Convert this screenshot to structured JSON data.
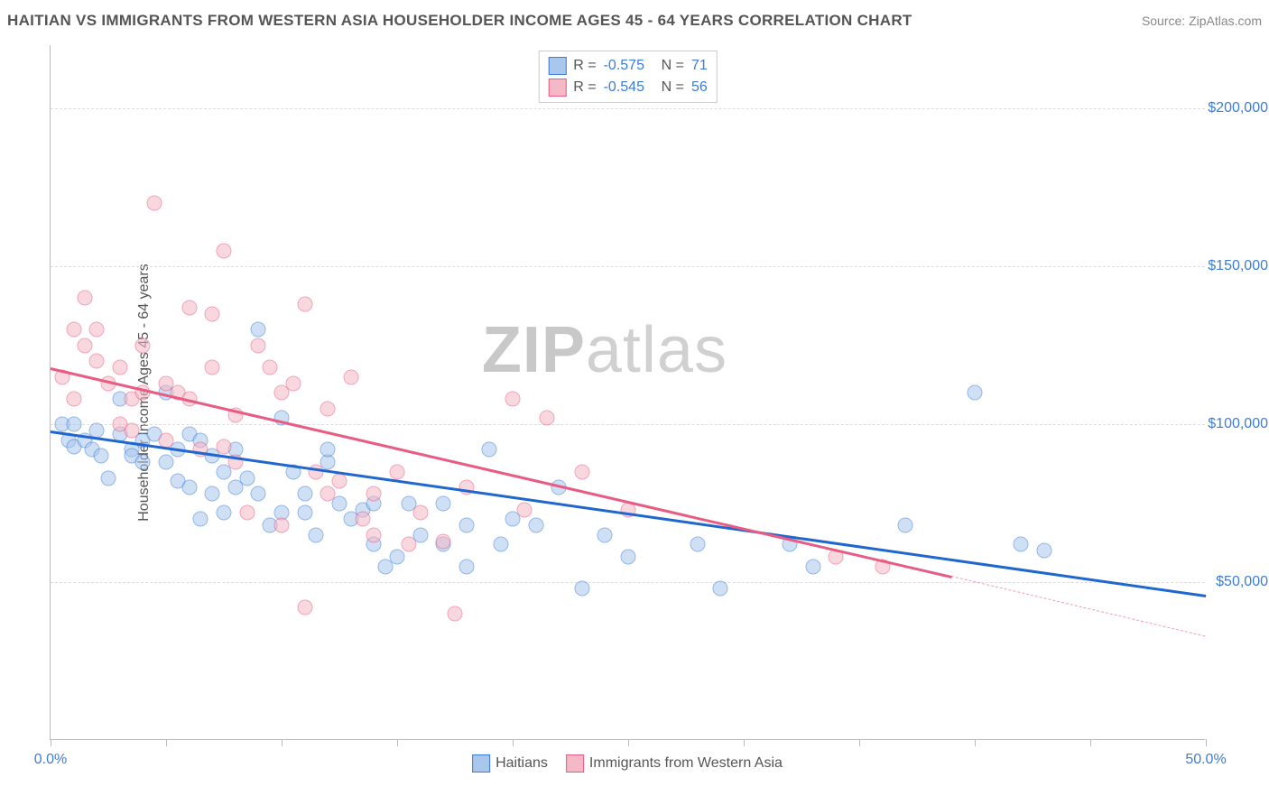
{
  "title": "HAITIAN VS IMMIGRANTS FROM WESTERN ASIA HOUSEHOLDER INCOME AGES 45 - 64 YEARS CORRELATION CHART",
  "source": "Source: ZipAtlas.com",
  "watermark_a": "ZIP",
  "watermark_b": "atlas",
  "chart": {
    "type": "scatter",
    "xlabel": "",
    "ylabel": "Householder Income Ages 45 - 64 years",
    "xlim": [
      0,
      50
    ],
    "ylim": [
      0,
      220000
    ],
    "xtick_labels": {
      "0": "0.0%",
      "50": "50.0%"
    },
    "xticks": [
      0,
      5,
      10,
      15,
      20,
      25,
      30,
      35,
      40,
      45,
      50
    ],
    "yticks": [
      50000,
      100000,
      150000,
      200000
    ],
    "ytick_labels": {
      "50000": "$50,000",
      "100000": "$100,000",
      "150000": "$150,000",
      "200000": "$200,000"
    },
    "grid_color": "#dddddd",
    "axis_color": "#bbbbbb",
    "tick_label_color": "#3b7dd8",
    "tick_label_fontsize": 16,
    "background_color": "#ffffff",
    "marker_size": 17,
    "marker_opacity": 0.55,
    "series": [
      {
        "name": "Haitians",
        "color_fill": "#a9c6ec",
        "color_stroke": "#3b7dd8",
        "trend_color": "#1f66d0",
        "trend_width": 2.5,
        "R": "-0.575",
        "N": "71",
        "trend": {
          "x1": 0,
          "y1": 98000,
          "x2": 50,
          "y2": 46000
        },
        "points": [
          [
            0.5,
            100000
          ],
          [
            0.8,
            95000
          ],
          [
            1,
            93000
          ],
          [
            1,
            100000
          ],
          [
            1.5,
            95000
          ],
          [
            1.8,
            92000
          ],
          [
            2,
            98000
          ],
          [
            2.2,
            90000
          ],
          [
            2.5,
            83000
          ],
          [
            3,
            97000
          ],
          [
            3,
            108000
          ],
          [
            3.5,
            92000
          ],
          [
            3.5,
            90000
          ],
          [
            4,
            88000
          ],
          [
            4,
            95000
          ],
          [
            4.5,
            97000
          ],
          [
            5,
            110000
          ],
          [
            5,
            88000
          ],
          [
            5.5,
            82000
          ],
          [
            5.5,
            92000
          ],
          [
            6,
            97000
          ],
          [
            6,
            80000
          ],
          [
            6.5,
            95000
          ],
          [
            6.5,
            70000
          ],
          [
            7,
            90000
          ],
          [
            7,
            78000
          ],
          [
            7.5,
            72000
          ],
          [
            7.5,
            85000
          ],
          [
            8,
            80000
          ],
          [
            8,
            92000
          ],
          [
            8.5,
            83000
          ],
          [
            9,
            130000
          ],
          [
            9,
            78000
          ],
          [
            9.5,
            68000
          ],
          [
            10,
            102000
          ],
          [
            10,
            72000
          ],
          [
            10.5,
            85000
          ],
          [
            11,
            78000
          ],
          [
            11,
            72000
          ],
          [
            11.5,
            65000
          ],
          [
            12,
            88000
          ],
          [
            12,
            92000
          ],
          [
            12.5,
            75000
          ],
          [
            13,
            70000
          ],
          [
            13.5,
            73000
          ],
          [
            14,
            75000
          ],
          [
            14,
            62000
          ],
          [
            14.5,
            55000
          ],
          [
            15,
            58000
          ],
          [
            15.5,
            75000
          ],
          [
            16,
            65000
          ],
          [
            17,
            75000
          ],
          [
            17,
            62000
          ],
          [
            18,
            55000
          ],
          [
            18,
            68000
          ],
          [
            19,
            92000
          ],
          [
            19.5,
            62000
          ],
          [
            20,
            70000
          ],
          [
            21,
            68000
          ],
          [
            22,
            80000
          ],
          [
            23,
            48000
          ],
          [
            24,
            65000
          ],
          [
            25,
            58000
          ],
          [
            28,
            62000
          ],
          [
            29,
            48000
          ],
          [
            32,
            62000
          ],
          [
            33,
            55000
          ],
          [
            37,
            68000
          ],
          [
            40,
            110000
          ],
          [
            42,
            62000
          ],
          [
            43,
            60000
          ]
        ]
      },
      {
        "name": "Immigrants from Western Asia",
        "color_fill": "#f4b8c6",
        "color_stroke": "#e85b82",
        "trend_color": "#e85b82",
        "trend_width": 2.5,
        "R": "-0.545",
        "N": "56",
        "trend": {
          "x1": 0,
          "y1": 118000,
          "x2": 39,
          "y2": 52000
        },
        "trend_dashed": {
          "x1": 39,
          "y1": 52000,
          "x2": 50,
          "y2": 33000
        },
        "points": [
          [
            0.5,
            115000
          ],
          [
            1,
            130000
          ],
          [
            1,
            108000
          ],
          [
            1.5,
            125000
          ],
          [
            1.5,
            140000
          ],
          [
            2,
            120000
          ],
          [
            2,
            130000
          ],
          [
            2.5,
            113000
          ],
          [
            3,
            100000
          ],
          [
            3,
            118000
          ],
          [
            3.5,
            98000
          ],
          [
            3.5,
            108000
          ],
          [
            4,
            110000
          ],
          [
            4,
            125000
          ],
          [
            4.5,
            170000
          ],
          [
            5,
            95000
          ],
          [
            5,
            113000
          ],
          [
            5.5,
            110000
          ],
          [
            6,
            137000
          ],
          [
            6,
            108000
          ],
          [
            6.5,
            92000
          ],
          [
            7,
            118000
          ],
          [
            7,
            135000
          ],
          [
            7.5,
            93000
          ],
          [
            7.5,
            155000
          ],
          [
            8,
            88000
          ],
          [
            8,
            103000
          ],
          [
            8.5,
            72000
          ],
          [
            9,
            125000
          ],
          [
            9.5,
            118000
          ],
          [
            10,
            68000
          ],
          [
            10,
            110000
          ],
          [
            10.5,
            113000
          ],
          [
            11,
            138000
          ],
          [
            11,
            42000
          ],
          [
            11.5,
            85000
          ],
          [
            12,
            78000
          ],
          [
            12,
            105000
          ],
          [
            12.5,
            82000
          ],
          [
            13,
            115000
          ],
          [
            13.5,
            70000
          ],
          [
            14,
            78000
          ],
          [
            14,
            65000
          ],
          [
            15,
            85000
          ],
          [
            15.5,
            62000
          ],
          [
            16,
            72000
          ],
          [
            17,
            63000
          ],
          [
            17.5,
            40000
          ],
          [
            18,
            80000
          ],
          [
            20,
            108000
          ],
          [
            20.5,
            73000
          ],
          [
            21.5,
            102000
          ],
          [
            23,
            85000
          ],
          [
            25,
            73000
          ],
          [
            34,
            58000
          ],
          [
            36,
            55000
          ]
        ]
      }
    ],
    "legend_bottom": [
      {
        "label": "Haitians",
        "fill": "#a9c6ec",
        "stroke": "#3b7dd8"
      },
      {
        "label": "Immigrants from Western Asia",
        "fill": "#f4b8c6",
        "stroke": "#e85b82"
      }
    ]
  }
}
